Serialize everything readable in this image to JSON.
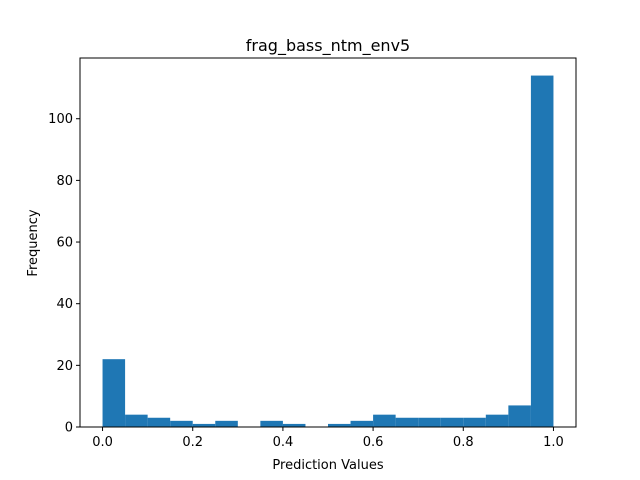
{
  "chart_data": {
    "type": "bar",
    "title": "frag_bass_ntm_env5",
    "xlabel": "Prediction Values",
    "ylabel": "Frequency",
    "bar_color": "#1f77b4",
    "bin_edges": [
      0.0,
      0.05,
      0.1,
      0.15,
      0.2,
      0.25,
      0.3,
      0.35,
      0.4,
      0.45,
      0.5,
      0.55,
      0.6,
      0.65,
      0.7,
      0.75,
      0.8,
      0.85,
      0.9,
      0.95,
      1.0
    ],
    "values": [
      22,
      4,
      3,
      2,
      1,
      2,
      0,
      2,
      1,
      0,
      1,
      2,
      4,
      3,
      3,
      3,
      3,
      4,
      7,
      114
    ],
    "xlim": [
      -0.05,
      1.05
    ],
    "ylim": [
      0,
      119.7
    ],
    "xticks": [
      0.0,
      0.2,
      0.4,
      0.6,
      0.8,
      1.0
    ],
    "xtick_labels": [
      "0.0",
      "0.2",
      "0.4",
      "0.6",
      "0.8",
      "1.0"
    ],
    "yticks": [
      0,
      20,
      40,
      60,
      80,
      100
    ],
    "ytick_labels": [
      "0",
      "20",
      "40",
      "60",
      "80",
      "100"
    ],
    "grid": false,
    "legend": "none"
  }
}
